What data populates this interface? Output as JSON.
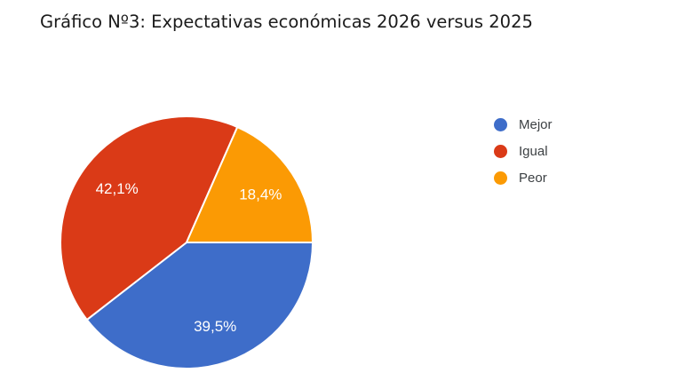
{
  "page": {
    "background": "#ffffff"
  },
  "title": "Gráfico Nº3: Expectativas económicas 2026 versus 2025",
  "chart_data": {
    "type": "pie",
    "title": "Gráfico Nº3: Expectativas económicas 2026 versus 2025",
    "categories": [
      "Mejor",
      "Igual",
      "Peor"
    ],
    "values": [
      39.5,
      42.1,
      18.4
    ],
    "value_labels": [
      "39,5%",
      "42,1%",
      "18,4%"
    ],
    "colors": [
      "#3e6dc9",
      "#da3a17",
      "#fb9a04"
    ],
    "start_angle_deg": 90,
    "direction": "clockwise",
    "slice_border_color": "#ffffff",
    "label_color": "#ffffff",
    "label_radius_ratio": 0.7,
    "legend_position": "right"
  },
  "legend": {
    "items": [
      {
        "label": "Mejor",
        "color": "#3e6dc9"
      },
      {
        "label": "Igual",
        "color": "#da3a17"
      },
      {
        "label": "Peor",
        "color": "#fb9a04"
      }
    ]
  }
}
